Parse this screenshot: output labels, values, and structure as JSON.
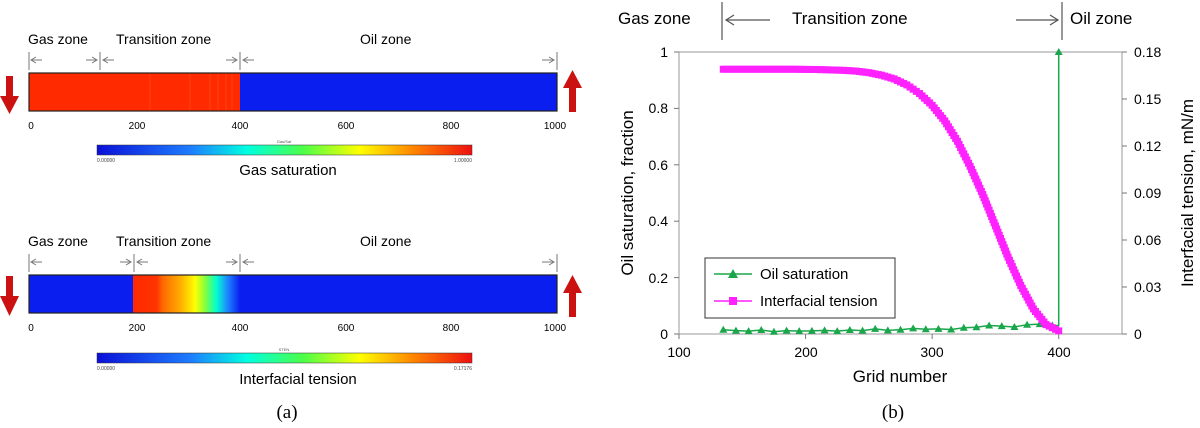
{
  "panel_a": {
    "caption": "(a)",
    "top": {
      "zone_labels": [
        "Gas zone",
        "Transition zone",
        "Oil zone"
      ],
      "colorbar_label": "Gas saturation",
      "colorbar_title": "Gas/Sat",
      "colorbar_min": "0.00000",
      "colorbar_max": "1.00000",
      "tick_labels": [
        "0",
        "200",
        "400",
        "600",
        "800",
        "1000"
      ]
    },
    "bottom": {
      "zone_labels": [
        "Gas zone",
        "Transition zone",
        "Oil zone"
      ],
      "colorbar_label": "Interfacial tension",
      "colorbar_title": "STEN",
      "colorbar_min": "0.00000",
      "colorbar_max": "0.17176",
      "tick_labels": [
        "0",
        "200",
        "400",
        "600",
        "800",
        "1000"
      ]
    }
  },
  "panel_b": {
    "caption": "(b)",
    "zone_labels": [
      "Gas zone",
      "Transition zone",
      "Oil zone"
    ]
  },
  "colors": {
    "gas_red": "#ff2a00",
    "oil_blue": "#0a1ef0",
    "arrow_red": "#cc1111",
    "oil_saturation": "#1aa64a",
    "interfacial_tension": "#ff22ff"
  },
  "chart_data": {
    "type": "line",
    "xlabel": "Grid number",
    "ylabel": "Oil saturation, fraction",
    "y2label": "Interfacial tension, mN/m",
    "xlim": [
      100,
      450
    ],
    "ylim": [
      0,
      1
    ],
    "y2lim": [
      0,
      0.18
    ],
    "x_ticks": [
      "100",
      "200",
      "300",
      "400"
    ],
    "y_ticks": [
      "0",
      "0.2",
      "0.4",
      "0.6",
      "0.8",
      "1"
    ],
    "y2_ticks": [
      "0",
      "0.03",
      "0.06",
      "0.09",
      "0.12",
      "0.15",
      "0.18"
    ],
    "legend": "center-left",
    "series": [
      {
        "name": "Oil saturation",
        "axis": "left",
        "marker": "triangle",
        "x": [
          135,
          145,
          155,
          165,
          175,
          185,
          195,
          205,
          215,
          225,
          235,
          245,
          255,
          265,
          275,
          285,
          295,
          305,
          315,
          325,
          335,
          345,
          355,
          365,
          375,
          385,
          395,
          400,
          400
        ],
        "y": [
          0.015,
          0.012,
          0.01,
          0.014,
          0.008,
          0.012,
          0.01,
          0.011,
          0.013,
          0.01,
          0.014,
          0.012,
          0.018,
          0.013,
          0.015,
          0.02,
          0.017,
          0.018,
          0.016,
          0.022,
          0.024,
          0.03,
          0.028,
          0.025,
          0.033,
          0.035,
          0.03,
          0.03,
          1.0
        ]
      },
      {
        "name": "Interfacial tension",
        "axis": "right",
        "marker": "square",
        "x": [
          135,
          150,
          170,
          190,
          210,
          230,
          240,
          250,
          260,
          270,
          280,
          290,
          300,
          310,
          320,
          330,
          340,
          350,
          360,
          370,
          380,
          390,
          400
        ],
        "y": [
          0.169,
          0.169,
          0.169,
          0.169,
          0.1688,
          0.1683,
          0.1678,
          0.1668,
          0.1652,
          0.1628,
          0.159,
          0.1535,
          0.146,
          0.136,
          0.123,
          0.107,
          0.089,
          0.069,
          0.049,
          0.031,
          0.016,
          0.006,
          0.002
        ]
      }
    ]
  }
}
